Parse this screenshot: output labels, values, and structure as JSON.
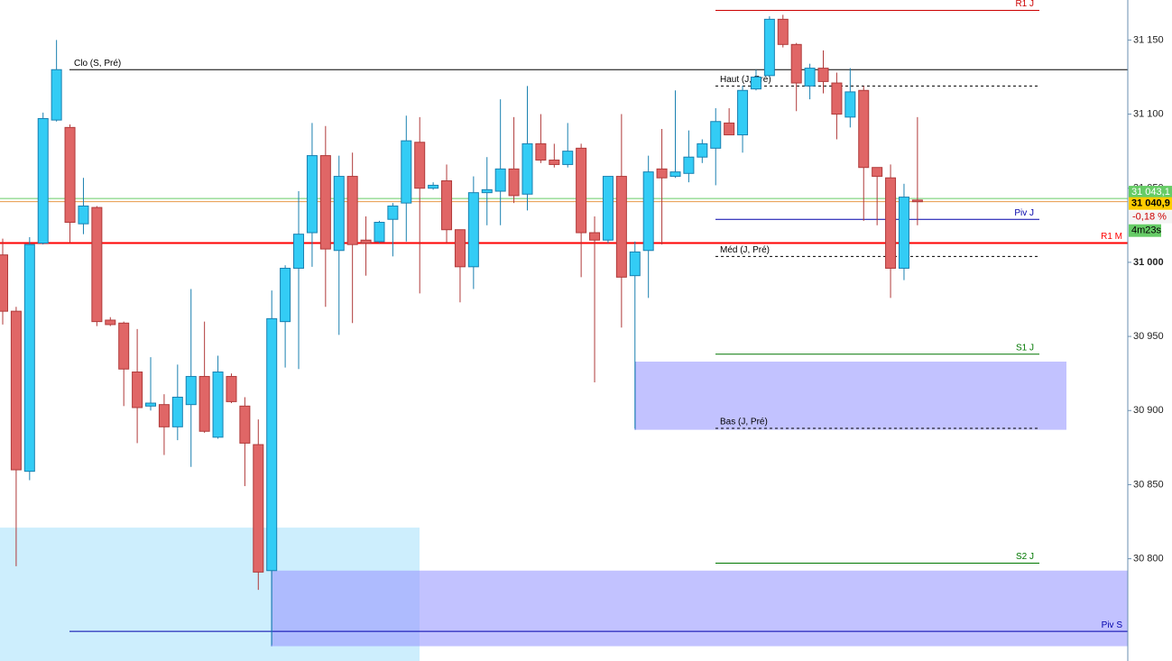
{
  "chart_data": {
    "type": "candlestick",
    "open": [
      31005,
      30967,
      30859,
      31013,
      31096,
      31091,
      31026,
      31037,
      30961,
      30959,
      30926,
      30903,
      30904,
      30889,
      30904,
      30923,
      30882,
      30923,
      30903,
      30877,
      30792,
      30960,
      30996,
      31020,
      31072,
      31008,
      31058,
      31015,
      31014,
      31029,
      31040,
      31081,
      31050,
      31055,
      31022,
      30997,
      31047,
      31048,
      31063,
      31046,
      31080,
      31069,
      31066,
      31077,
      31020,
      31015,
      31058,
      30991,
      31008,
      31063,
      31058,
      31060,
      31071,
      31077,
      31094,
      31086,
      31117,
      31126,
      31164,
      31147,
      31119,
      31131,
      31121,
      31098,
      31116,
      31064,
      31057,
      30996,
      31042
    ],
    "high": [
      31016,
      30970,
      31017,
      31101,
      31150,
      31093,
      31057,
      31038,
      30963,
      30960,
      30955,
      30936,
      30911,
      30931,
      30982,
      30960,
      30937,
      30925,
      30909,
      30894,
      30981,
      30998,
      31048,
      31094,
      31092,
      31072,
      31074,
      31031,
      31028,
      31040,
      31099,
      31098,
      31054,
      31066,
      31022,
      31058,
      31071,
      31110,
      31098,
      31119,
      31100,
      31080,
      31094,
      31080,
      31031,
      31058,
      31100,
      31014,
      31072,
      31090,
      31116,
      31089,
      31083,
      31104,
      31104,
      31119,
      31130,
      31166,
      31167,
      31148,
      31134,
      31143,
      31128,
      31131,
      31119,
      31064,
      31066,
      31053,
      31098
    ],
    "low": [
      30958,
      30795,
      30853,
      31012,
      31095,
      31013,
      31019,
      30957,
      30957,
      30903,
      30878,
      30900,
      30870,
      30880,
      30862,
      30885,
      30881,
      30905,
      30849,
      30779,
      30742,
      30929,
      30928,
      30997,
      30970,
      30951,
      30959,
      30991,
      31013,
      31004,
      31014,
      30979,
      31049,
      31013,
      30973,
      30982,
      31025,
      31025,
      31040,
      31035,
      31067,
      31064,
      31064,
      30990,
      30919,
      31013,
      30956,
      30888,
      30976,
      31012,
      31057,
      31054,
      31067,
      31052,
      31086,
      31074,
      31116,
      31125,
      31145,
      31102,
      31110,
      31114,
      31083,
      31091,
      31028,
      31025,
      30976,
      30988,
      31025
    ],
    "close": [
      30967,
      30860,
      31012,
      31097,
      31130,
      31027,
      31038,
      30960,
      30958,
      30928,
      30902,
      30905,
      30889,
      30909,
      30923,
      30886,
      30926,
      30906,
      30878,
      30791,
      30962,
      30996,
      31019,
      31072,
      31009,
      31058,
      31012,
      31013,
      31027,
      31038,
      31082,
      31050,
      31052,
      31022,
      30997,
      31047,
      31049,
      31063,
      31045,
      31080,
      31069,
      31066,
      31075,
      31020,
      31015,
      31058,
      30990,
      31007,
      31061,
      31057,
      31061,
      31071,
      31080,
      31095,
      31086,
      31116,
      31125,
      31164,
      31147,
      31121,
      31131,
      31122,
      31100,
      31115,
      31064,
      31058,
      30996,
      31044,
      31040.9
    ],
    "up_color": "#33ccf5",
    "down_color": "#e06666",
    "ylim": [
      30731,
      31177
    ],
    "yticks": [
      {
        "value": 30800,
        "label": "30 800"
      },
      {
        "value": 30850,
        "label": "30 850"
      },
      {
        "value": 30900,
        "label": "30 900"
      },
      {
        "value": 30950,
        "label": "30 950"
      },
      {
        "value": 31000,
        "label": "31 000"
      },
      {
        "value": 31050,
        "label": "31 050"
      },
      {
        "value": 31100,
        "label": "31 100"
      },
      {
        "value": 31150,
        "label": "31 150"
      }
    ],
    "levels": [
      {
        "name": "R1 J",
        "value": 31170,
        "color": "#cc0000",
        "dashed": false
      },
      {
        "name": "Clo (S, Pré)",
        "value": 31130,
        "color": "#000000",
        "dashed": false
      },
      {
        "name": "Haut (J, Pré)",
        "value": 31119,
        "color": "#000000",
        "dashed": true
      },
      {
        "name": "Piv J",
        "value": 31029,
        "color": "#0000aa",
        "dashed": false
      },
      {
        "name": "R1 M",
        "value": 31013,
        "color": "#ff0000",
        "dashed": false
      },
      {
        "name": "Méd (J, Pré)",
        "value": 31004,
        "color": "#000000",
        "dashed": true
      },
      {
        "name": "S1 J",
        "value": 30938,
        "color": "#007700",
        "dashed": false
      },
      {
        "name": "Bas (J, Pré)",
        "value": 30888,
        "color": "#000000",
        "dashed": true
      },
      {
        "name": "S2 J",
        "value": 30797,
        "color": "#007700",
        "dashed": false
      },
      {
        "name": "Piv S",
        "value": 30751,
        "color": "#0000aa",
        "dashed": false
      }
    ],
    "zones": [
      {
        "top": 30821,
        "bottom": 30731,
        "color": "#cdeefd"
      },
      {
        "top": 30933,
        "bottom": 30887,
        "color": "#9999ff"
      },
      {
        "top": 30792,
        "bottom": 30741,
        "color": "#9999ff"
      }
    ],
    "price_tags": [
      {
        "value": 31043.1,
        "label": "31 043,1",
        "color": "#66cc66"
      },
      {
        "value": 31040.9,
        "label": "31 040,9",
        "color": "#ffcc00"
      }
    ],
    "change": {
      "value": -0.18,
      "label": "-0,18 %"
    },
    "timer": "4m23s"
  }
}
